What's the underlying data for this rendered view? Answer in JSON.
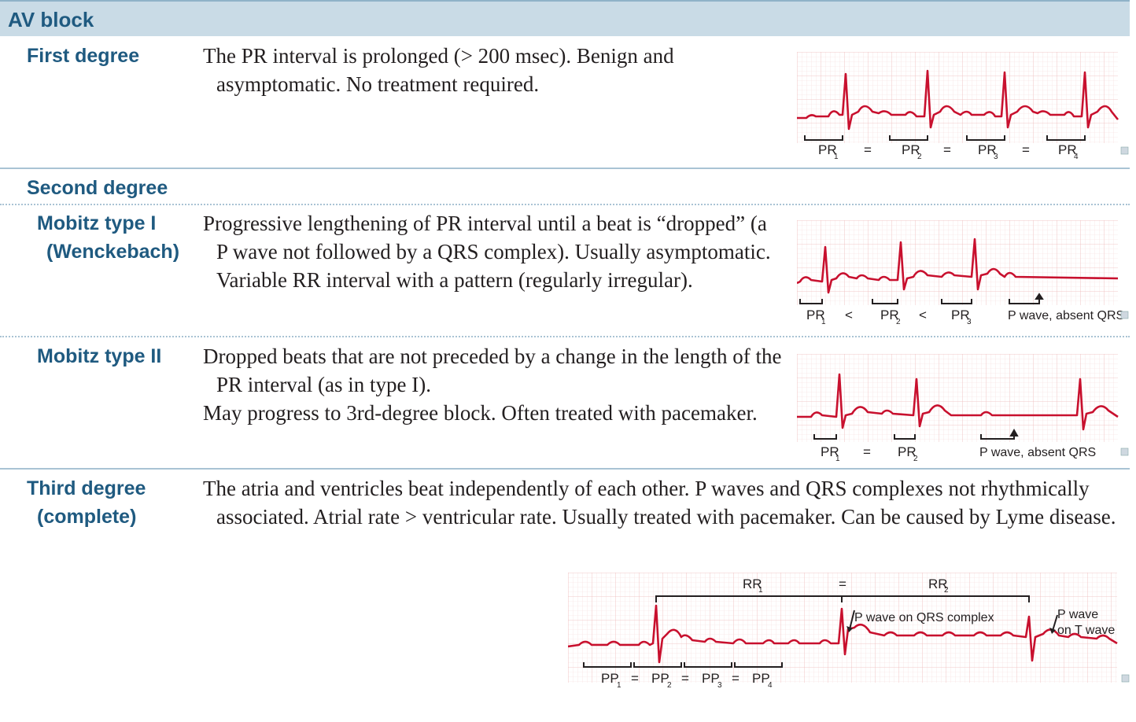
{
  "header": {
    "title": "AV block"
  },
  "rows": {
    "first": {
      "label": "First degree",
      "desc": "The PR interval is prolonged (> 200 msec). Benign and asymptomatic. No treatment required."
    },
    "second": {
      "label": "Second degree"
    },
    "mobitz1": {
      "label_line1": "Mobitz type I",
      "label_line2": "(Wenckebach)",
      "desc": "Progressive lengthening of PR interval until a beat is “dropped” (a P wave not followed by a QRS complex). Usually asymptomatic. Variable RR interval with a pattern (regularly irregular)."
    },
    "mobitz2": {
      "label": "Mobitz type II",
      "desc1": "Dropped beats that are not preceded by a change in the length of the PR interval (as in type I).",
      "desc2": "May progress to 3rd-degree block. Often treated with pacemaker."
    },
    "third": {
      "label_line1": "Third degree",
      "label_line2": "(complete)",
      "desc": "The atria and ventricles beat independently of each other. P waves and QRS complexes not rhythmically associated. Atrial rate > ventricular rate. Usually treated with pacemaker. Can be caused by Lyme disease."
    }
  },
  "ecg_labels": {
    "first": {
      "pr": "PR",
      "eq": "=",
      "subs": [
        "1",
        "2",
        "3",
        "4"
      ]
    },
    "mobitz1": {
      "pr": "PR",
      "lt": "<",
      "subs": [
        "1",
        "2",
        "3"
      ],
      "note": "P wave, absent QRS"
    },
    "mobitz2": {
      "pr": "PR",
      "eq": "=",
      "subs": [
        "1",
        "2"
      ],
      "note": "P wave, absent QRS"
    },
    "third": {
      "rr": "RR",
      "eq": "=",
      "rr_subs": [
        "1",
        "2"
      ],
      "pp": "PP",
      "pp_subs": [
        "1",
        "2",
        "3",
        "4"
      ],
      "note_qrs": "P wave on QRS complex",
      "note_t1": "P wave",
      "note_t2": "on T wave"
    }
  },
  "colors": {
    "heading": "#1f5a80",
    "header_bg": "#c9dbe6",
    "ecg_trace": "#c8102e",
    "grid": "#f3c9c9"
  }
}
